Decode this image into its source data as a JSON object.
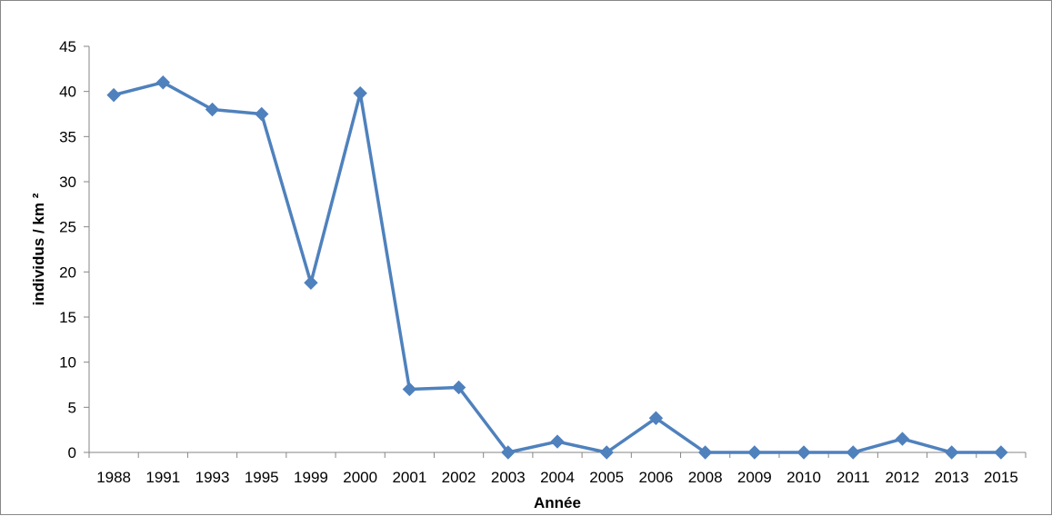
{
  "chart_data": {
    "type": "line",
    "xlabel": "Année",
    "ylabel": "individus / km ²",
    "ylim": [
      0,
      45
    ],
    "yticks": [
      0,
      5,
      10,
      15,
      20,
      25,
      30,
      35,
      40,
      45
    ],
    "categories": [
      "1988",
      "1991",
      "1993",
      "1995",
      "1999",
      "2000",
      "2001",
      "2002",
      "2003",
      "2004",
      "2005",
      "2006",
      "2008",
      "2009",
      "2010",
      "2011",
      "2012",
      "2013",
      "2015"
    ],
    "series": [
      {
        "values": [
          39.6,
          41.0,
          38.0,
          37.5,
          18.8,
          39.8,
          7.0,
          7.2,
          0.0,
          1.2,
          0.0,
          3.8,
          0.0,
          0.0,
          0.0,
          0.0,
          1.5,
          0.0,
          0.0
        ],
        "color": "#4f81bd",
        "marker": "diamond"
      }
    ],
    "grid": false,
    "legend": "none"
  }
}
